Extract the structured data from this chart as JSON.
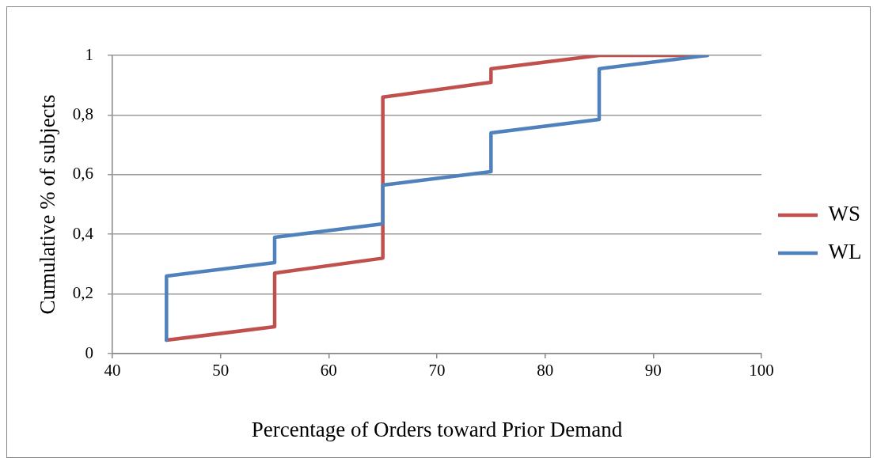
{
  "chart_data": {
    "type": "line",
    "xlabel": "Percentage of Orders toward Prior Demand",
    "ylabel": "Cumulative % of subjects",
    "xlim": [
      40,
      100
    ],
    "xticks": [
      40,
      50,
      60,
      70,
      80,
      90,
      100
    ],
    "ylim": [
      0,
      1
    ],
    "yticks": [
      0,
      {
        "value": 0.2,
        "label": "0,2"
      },
      {
        "value": 0.4,
        "label": "0,4"
      },
      {
        "value": 0.6,
        "label": "0,6"
      },
      {
        "value": 0.8,
        "label": "0,8"
      },
      1
    ],
    "grid": "y",
    "legend": "right",
    "marker": "none",
    "line_style": "solid",
    "series": [
      {
        "name": "WS",
        "color": "#c0504d",
        "x": [
          45,
          55,
          55,
          65,
          65,
          75,
          75,
          85,
          95
        ],
        "values": [
          0.045,
          0.09,
          0.27,
          0.32,
          0.86,
          0.91,
          0.955,
          1,
          1
        ]
      },
      {
        "name": "WL",
        "color": "#4f81bd",
        "x": [
          45,
          45,
          55,
          55,
          65,
          65,
          75,
          75,
          85,
          85,
          95
        ],
        "values": [
          0.045,
          0.26,
          0.305,
          0.39,
          0.435,
          0.565,
          0.61,
          0.74,
          0.785,
          0.955,
          1
        ]
      }
    ]
  }
}
